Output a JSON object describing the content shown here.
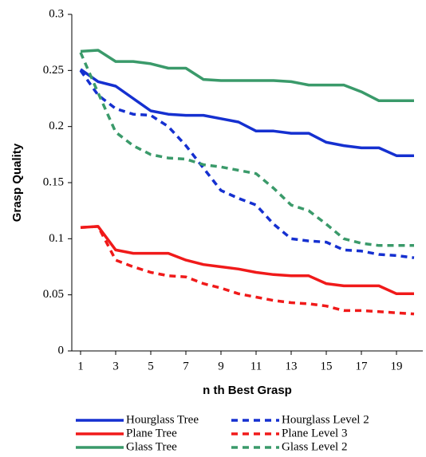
{
  "chart_data": {
    "type": "line",
    "xlabel": "n th Best Grasp",
    "ylabel": "Grasp Quality",
    "x": [
      1,
      2,
      3,
      4,
      5,
      6,
      7,
      8,
      9,
      10,
      11,
      12,
      13,
      14,
      15,
      16,
      17,
      18,
      19,
      20
    ],
    "xlim": [
      0.5,
      20.5
    ],
    "xticks": [
      1,
      3,
      5,
      7,
      9,
      11,
      13,
      15,
      17,
      19
    ],
    "ylim": [
      0,
      0.3
    ],
    "yticks": [
      0,
      0.05,
      0.1,
      0.15,
      0.2,
      0.25,
      0.3
    ],
    "series": [
      {
        "name": "Hourglass Tree",
        "color": "#1530d0",
        "dashed": false,
        "values": [
          0.251,
          0.24,
          0.236,
          0.225,
          0.214,
          0.211,
          0.21,
          0.21,
          0.207,
          0.204,
          0.196,
          0.196,
          0.194,
          0.194,
          0.186,
          0.183,
          0.181,
          0.181,
          0.174,
          0.174
        ]
      },
      {
        "name": "Hourglass Level 2",
        "color": "#1530d0",
        "dashed": true,
        "values": [
          0.25,
          0.228,
          0.216,
          0.211,
          0.21,
          0.2,
          0.183,
          0.163,
          0.143,
          0.136,
          0.13,
          0.113,
          0.1,
          0.098,
          0.097,
          0.09,
          0.089,
          0.086,
          0.085,
          0.083
        ]
      },
      {
        "name": "Plane Tree",
        "color": "#f01a1a",
        "dashed": false,
        "values": [
          0.11,
          0.111,
          0.09,
          0.087,
          0.087,
          0.087,
          0.081,
          0.077,
          0.075,
          0.073,
          0.07,
          0.068,
          0.067,
          0.067,
          0.06,
          0.058,
          0.058,
          0.058,
          0.051,
          0.051
        ]
      },
      {
        "name": "Plane Level 3",
        "color": "#f01a1a",
        "dashed": true,
        "values": [
          0.11,
          0.111,
          0.081,
          0.075,
          0.07,
          0.067,
          0.066,
          0.06,
          0.056,
          0.051,
          0.048,
          0.045,
          0.043,
          0.042,
          0.04,
          0.036,
          0.036,
          0.035,
          0.034,
          0.033
        ]
      },
      {
        "name": "Glass Tree",
        "color": "#3a9a6a",
        "dashed": false,
        "values": [
          0.267,
          0.268,
          0.258,
          0.258,
          0.256,
          0.252,
          0.252,
          0.242,
          0.241,
          0.241,
          0.241,
          0.241,
          0.24,
          0.237,
          0.237,
          0.237,
          0.231,
          0.223,
          0.223,
          0.223
        ]
      },
      {
        "name": "Glass Level 2",
        "color": "#3a9a6a",
        "dashed": true,
        "values": [
          0.266,
          0.23,
          0.195,
          0.183,
          0.175,
          0.172,
          0.171,
          0.166,
          0.164,
          0.161,
          0.158,
          0.145,
          0.13,
          0.125,
          0.113,
          0.1,
          0.096,
          0.094,
          0.094,
          0.094
        ]
      }
    ]
  }
}
